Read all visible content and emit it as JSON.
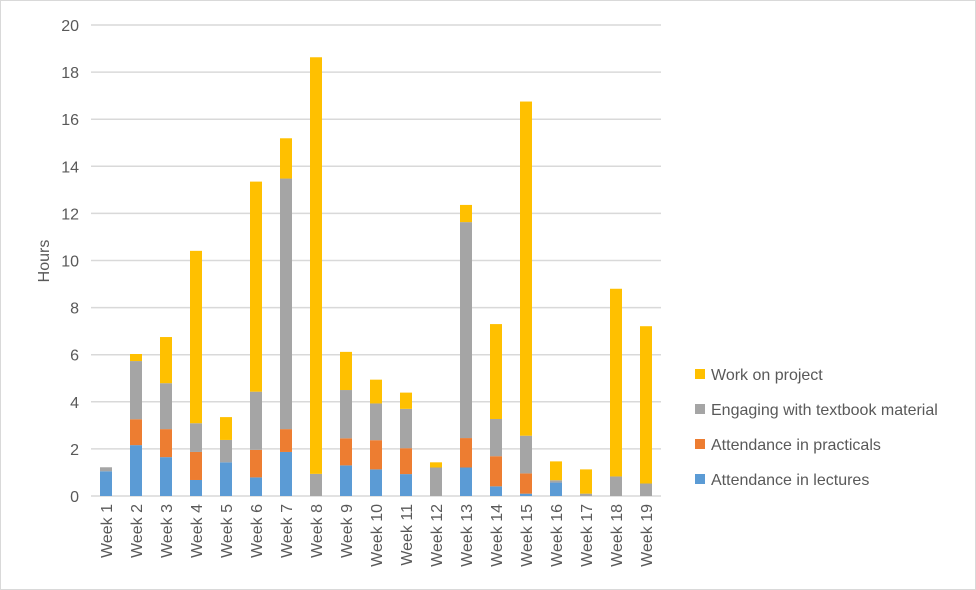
{
  "chart_data": {
    "type": "bar",
    "stacked": true,
    "title": "",
    "xlabel": "",
    "ylabel": "Hours",
    "ylim": [
      0,
      20
    ],
    "yticks": [
      0,
      2,
      4,
      6,
      8,
      10,
      12,
      14,
      16,
      18,
      20
    ],
    "grid": true,
    "legend_position": "right",
    "categories": [
      "Week 1",
      "Week 2",
      "Week 3",
      "Week 4",
      "Week 5",
      "Week 6",
      "Week 7",
      "Week 8",
      "Week 9",
      "Week 10",
      "Week 11",
      "Week 12",
      "Week 13",
      "Week 14",
      "Week 15",
      "Week 16",
      "Week 17",
      "Week 18",
      "Week 19"
    ],
    "series": [
      {
        "name": "Attendance in lectures",
        "color": "#5b9bd5",
        "values": [
          1.05,
          2.16,
          1.65,
          0.68,
          1.43,
          0.79,
          1.87,
          0,
          1.3,
          1.13,
          0.93,
          0,
          1.21,
          0.41,
          0.1,
          0.57,
          0,
          0,
          0
        ]
      },
      {
        "name": "Attendance in practicals",
        "color": "#ed7d31",
        "values": [
          0,
          1.1,
          1.19,
          1.19,
          0,
          1.17,
          0.97,
          0,
          1.15,
          1.24,
          1.1,
          0,
          1.25,
          1.28,
          0.86,
          0,
          0,
          0,
          0
        ]
      },
      {
        "name": "Engaging with textbook material",
        "color": "#a5a5a5",
        "values": [
          0.17,
          2.47,
          1.95,
          1.22,
          0.95,
          2.47,
          10.64,
          0.94,
          2.05,
          1.56,
          1.67,
          1.21,
          9.17,
          1.58,
          1.6,
          0.1,
          0.1,
          0.83,
          0.53
        ]
      },
      {
        "name": "Work on project",
        "color": "#ffc000",
        "values": [
          0,
          0.3,
          1.96,
          7.32,
          0.97,
          8.92,
          1.71,
          17.69,
          1.62,
          1.01,
          0.69,
          0.22,
          0.73,
          4.03,
          14.19,
          0.8,
          1.03,
          7.97,
          6.68
        ]
      }
    ]
  }
}
